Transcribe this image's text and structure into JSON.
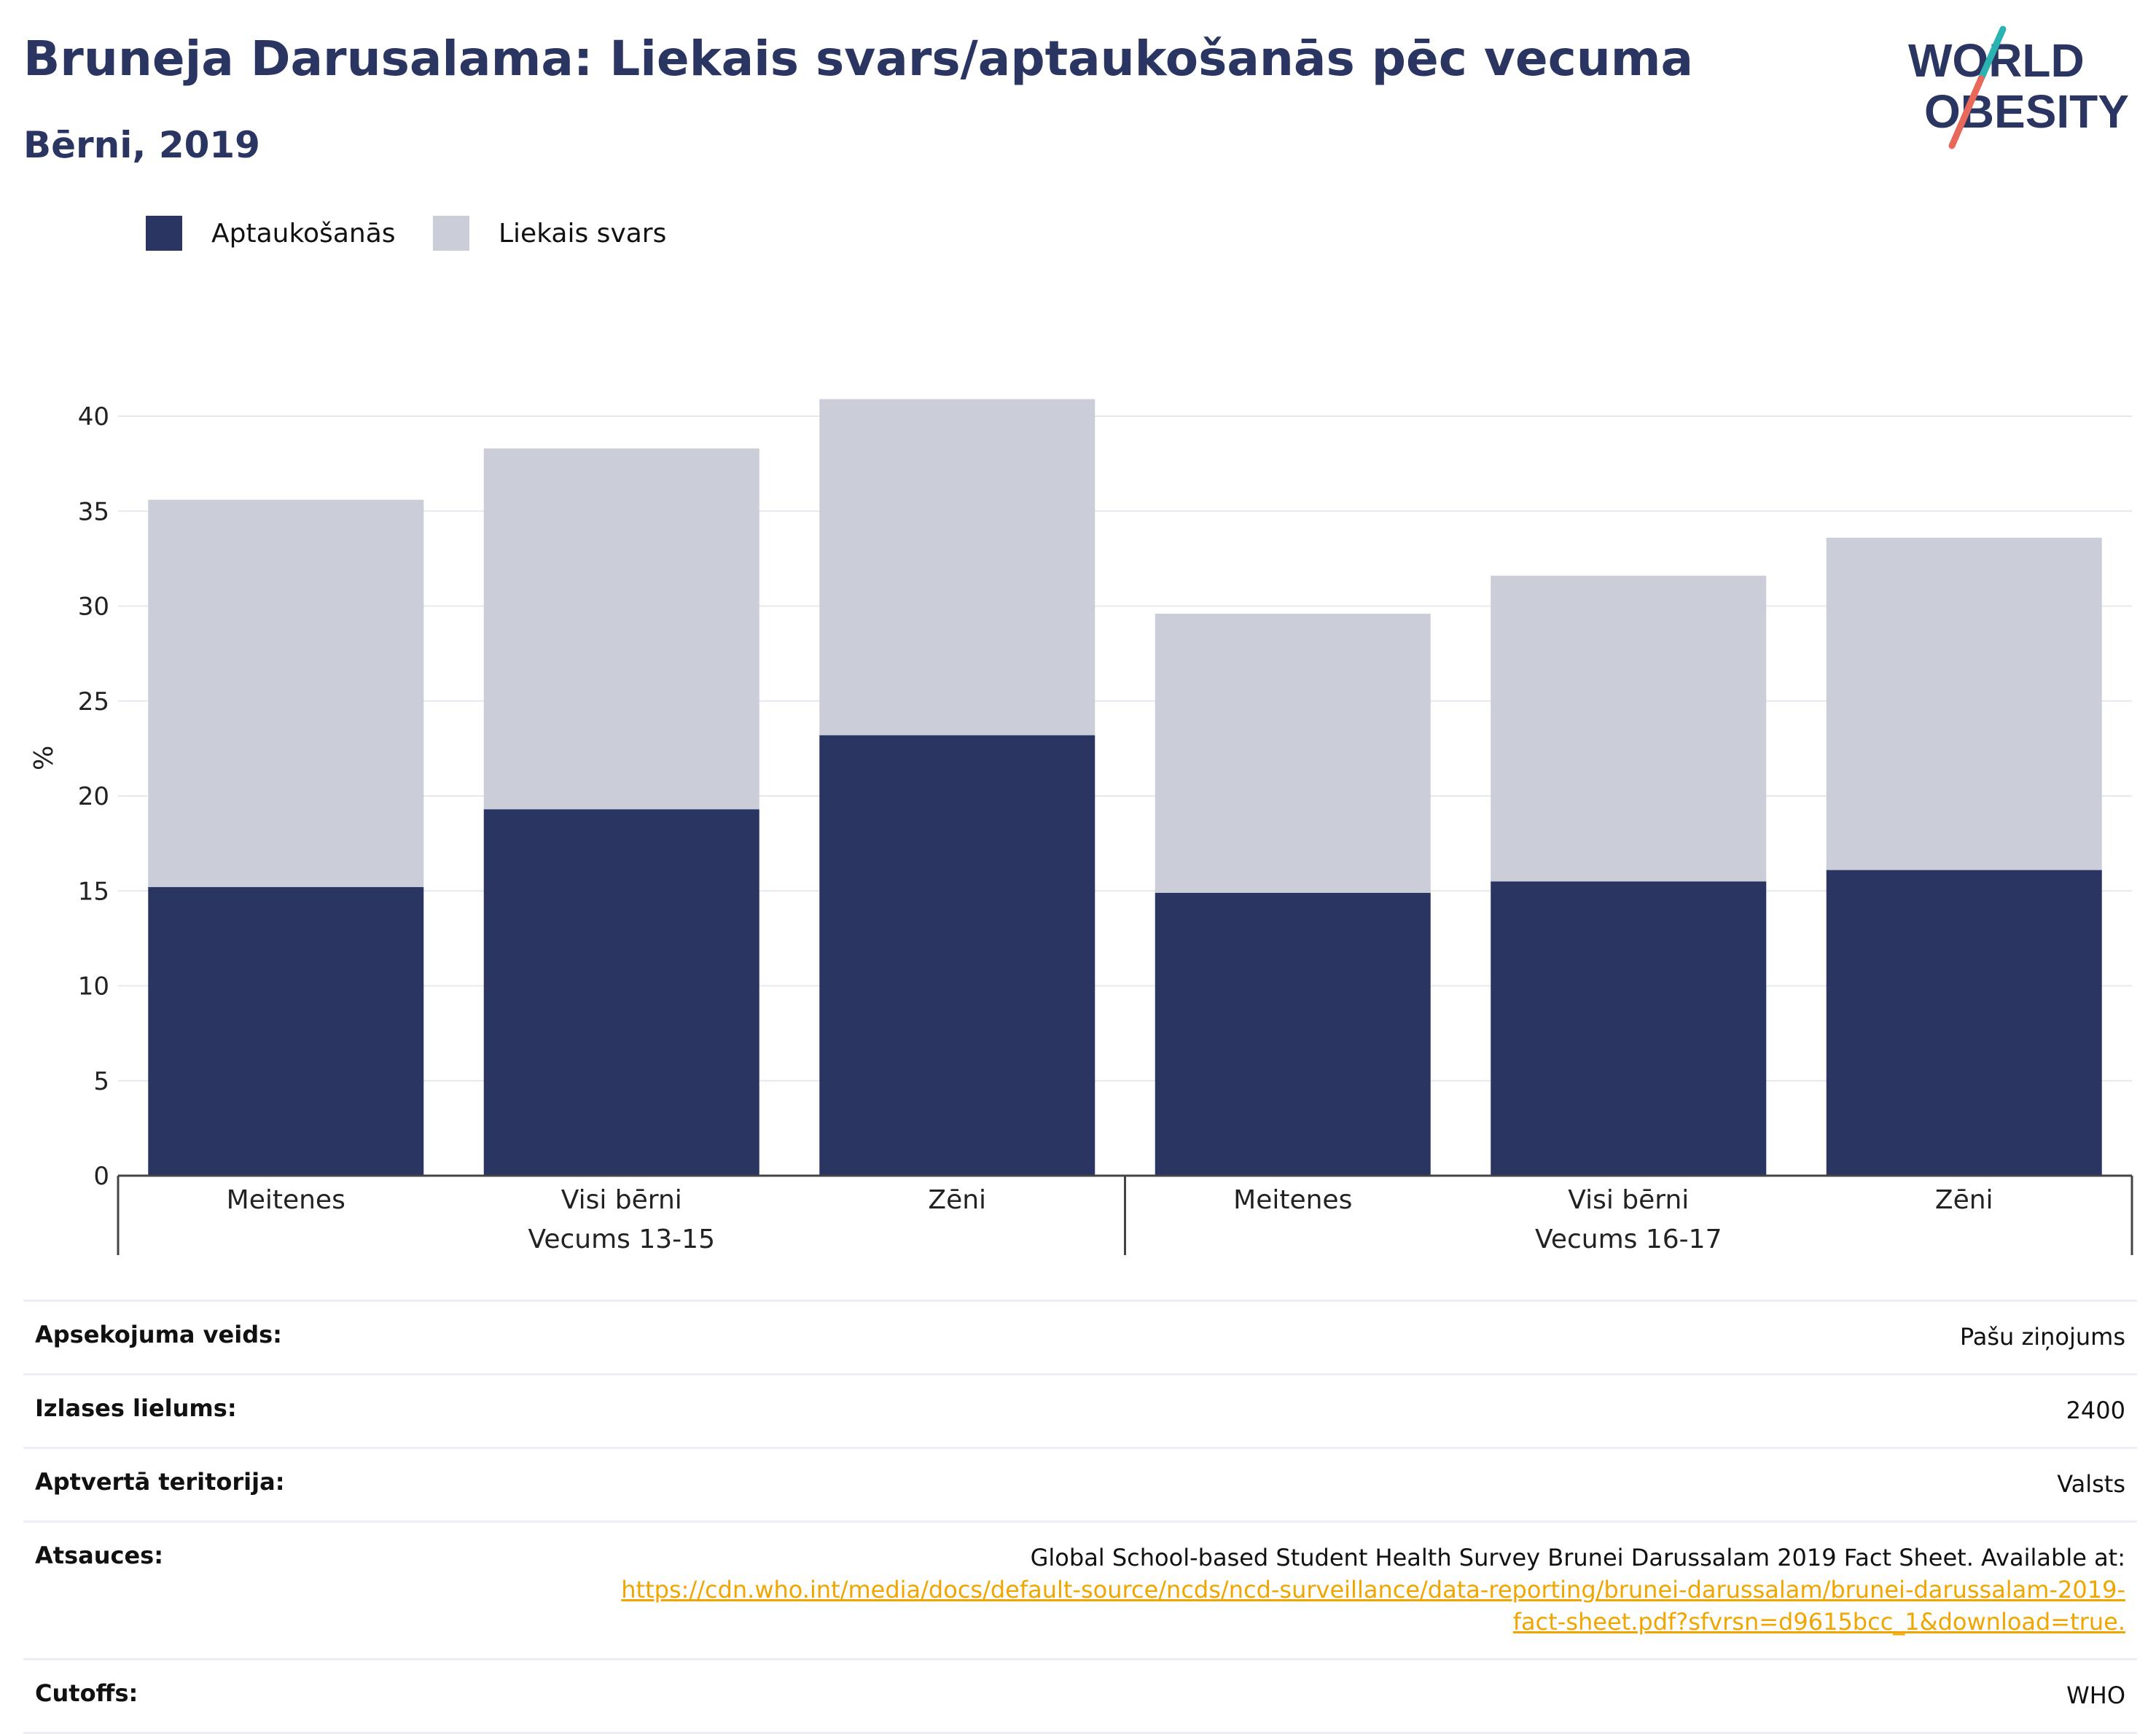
{
  "header": {
    "title": "Bruneja Darusalama: Liekais svars/aptaukošanās pēc vecuma",
    "subtitle": "Bērni, 2019",
    "logo_line1": "WORLD",
    "logo_line2": "OBESITY"
  },
  "legend": [
    {
      "label": "Aptaukošanās",
      "color": "#2b3562"
    },
    {
      "label": "Liekais svars",
      "color": "#cbcdd9"
    }
  ],
  "chart_data": {
    "type": "bar",
    "stacked": true,
    "groups": [
      {
        "label": "Vecums 13-15",
        "categories": [
          "Meitenes",
          "Visi bērni",
          "Zēni"
        ]
      },
      {
        "label": "Vecums 16-17",
        "categories": [
          "Meitenes",
          "Visi bērni",
          "Zēni"
        ]
      }
    ],
    "series": [
      {
        "name": "Aptaukošanās",
        "color": "#2b3562",
        "values": [
          15.2,
          19.3,
          23.2,
          14.9,
          15.5,
          16.1
        ]
      },
      {
        "name": "Liekais svars",
        "color": "#cbcdd9",
        "values": [
          20.4,
          19.0,
          17.7,
          14.7,
          16.1,
          17.5
        ]
      }
    ],
    "ylabel": "%",
    "ylim": [
      0,
      43
    ],
    "yticks": [
      0,
      5,
      10,
      15,
      20,
      25,
      30,
      35,
      40
    ],
    "grid": true,
    "legend_position": "top-left"
  },
  "info": [
    {
      "label": "Apsekojuma veids:",
      "value": "Pašu ziņojums"
    },
    {
      "label": "Izlases lielums:",
      "value": "2400"
    },
    {
      "label": "Aptvertā teritorija:",
      "value": "Valsts"
    },
    {
      "label": "Atsauces:",
      "value": "Global School-based Student Health Survey Brunei Darussalam 2019 Fact Sheet. Available at: ",
      "link": "https://cdn.who.int/media/docs/default-source/ncds/ncd-surveillance/data-reporting/brunei-darussalam/brunei-darussalam-2019-fact-sheet.pdf?sfvrsn=d9615bcc_1&download=true."
    },
    {
      "label": "Cutoffs:",
      "value": "WHO"
    }
  ]
}
